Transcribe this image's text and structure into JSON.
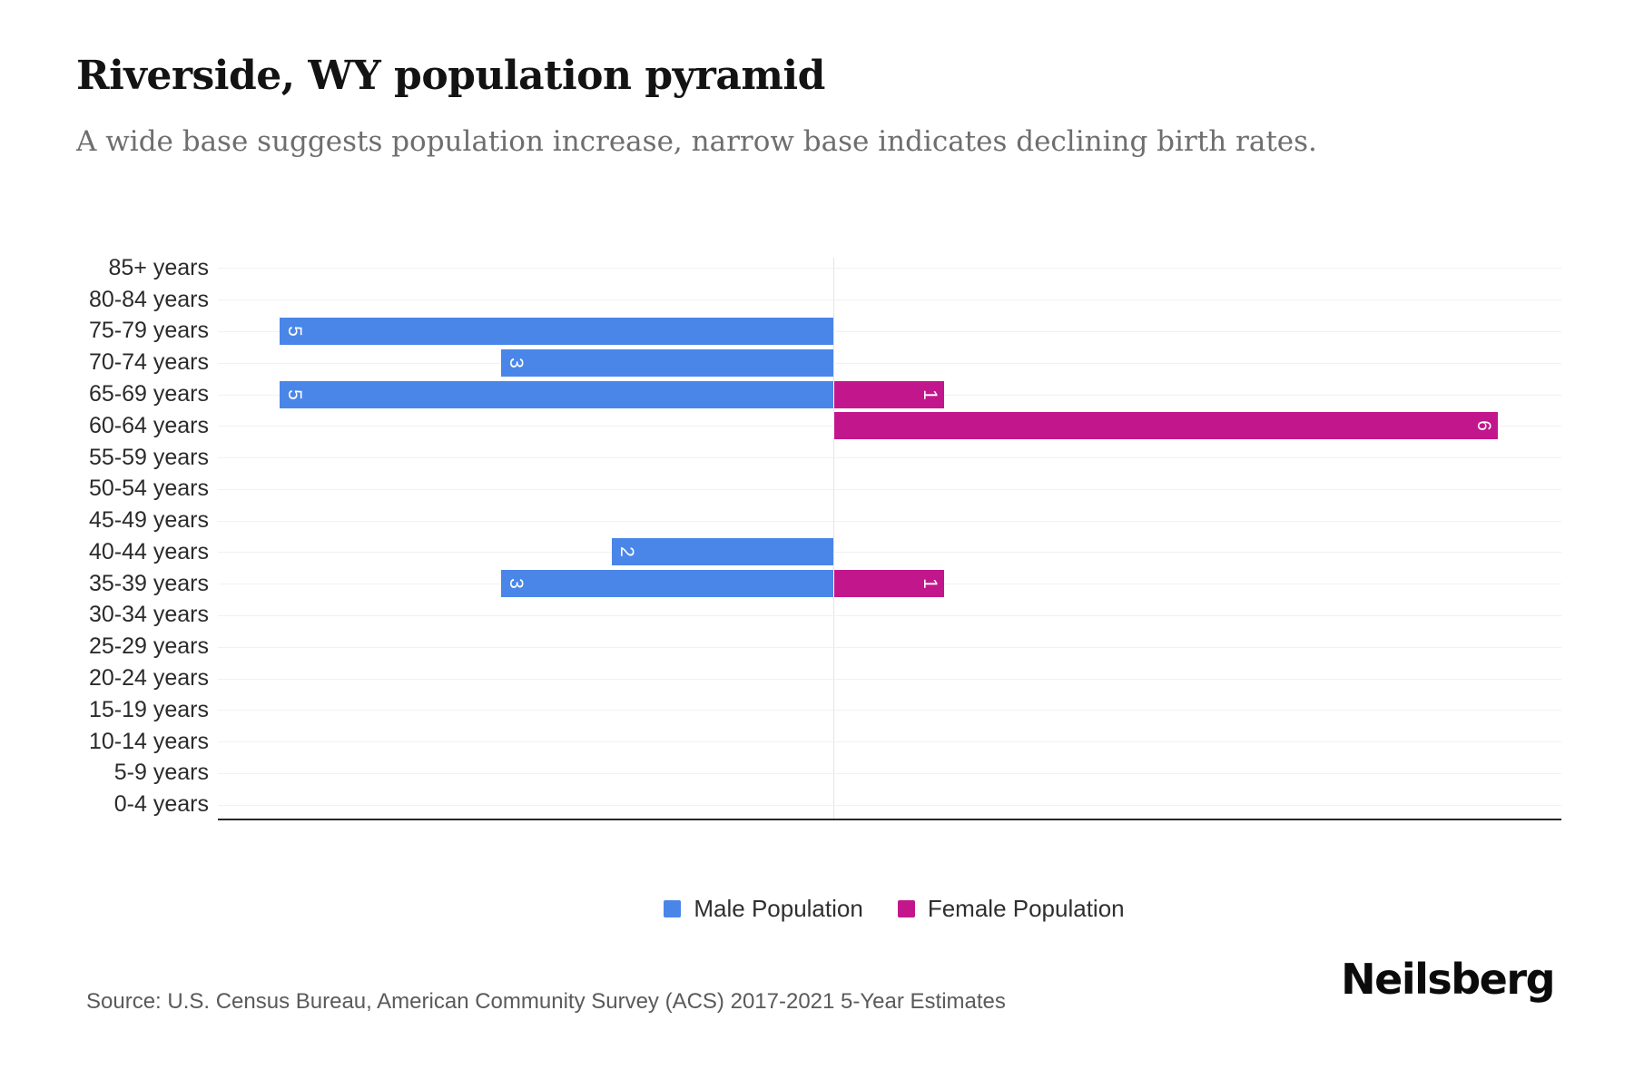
{
  "title": "Riverside, WY population pyramid",
  "subtitle": "A wide base suggests population increase, narrow base indicates declining birth rates.",
  "source": "Source: U.S. Census Bureau, American Community Survey (ACS) 2017-2021 5-Year Estimates",
  "brand": "Neilsberg",
  "legend": {
    "male": "Male Population",
    "female": "Female Population"
  },
  "colors": {
    "male": "#4A86E8",
    "female": "#C2178C"
  },
  "chart_data": {
    "type": "bar",
    "variant": "population-pyramid",
    "title": "Riverside, WY population pyramid",
    "categories": [
      "85+ years",
      "80-84 years",
      "75-79 years",
      "70-74 years",
      "65-69 years",
      "60-64 years",
      "55-59 years",
      "50-54 years",
      "45-49 years",
      "40-44 years",
      "35-39 years",
      "30-34 years",
      "25-29 years",
      "20-24 years",
      "15-19 years",
      "10-14 years",
      "5-9 years",
      "0-4 years"
    ],
    "series": [
      {
        "name": "Male Population",
        "side": "left",
        "color": "#4A86E8",
        "values": [
          0,
          0,
          5,
          3,
          5,
          0,
          0,
          0,
          0,
          2,
          3,
          0,
          0,
          0,
          0,
          0,
          0,
          0
        ]
      },
      {
        "name": "Female Population",
        "side": "right",
        "color": "#C2178C",
        "values": [
          0,
          0,
          0,
          0,
          1,
          6,
          0,
          0,
          0,
          0,
          1,
          0,
          0,
          0,
          0,
          0,
          0,
          0
        ]
      }
    ],
    "value_label_rotation_deg": 90,
    "xlim": [
      -5.6,
      6.6
    ],
    "grid": true,
    "legend_position": "bottom"
  }
}
